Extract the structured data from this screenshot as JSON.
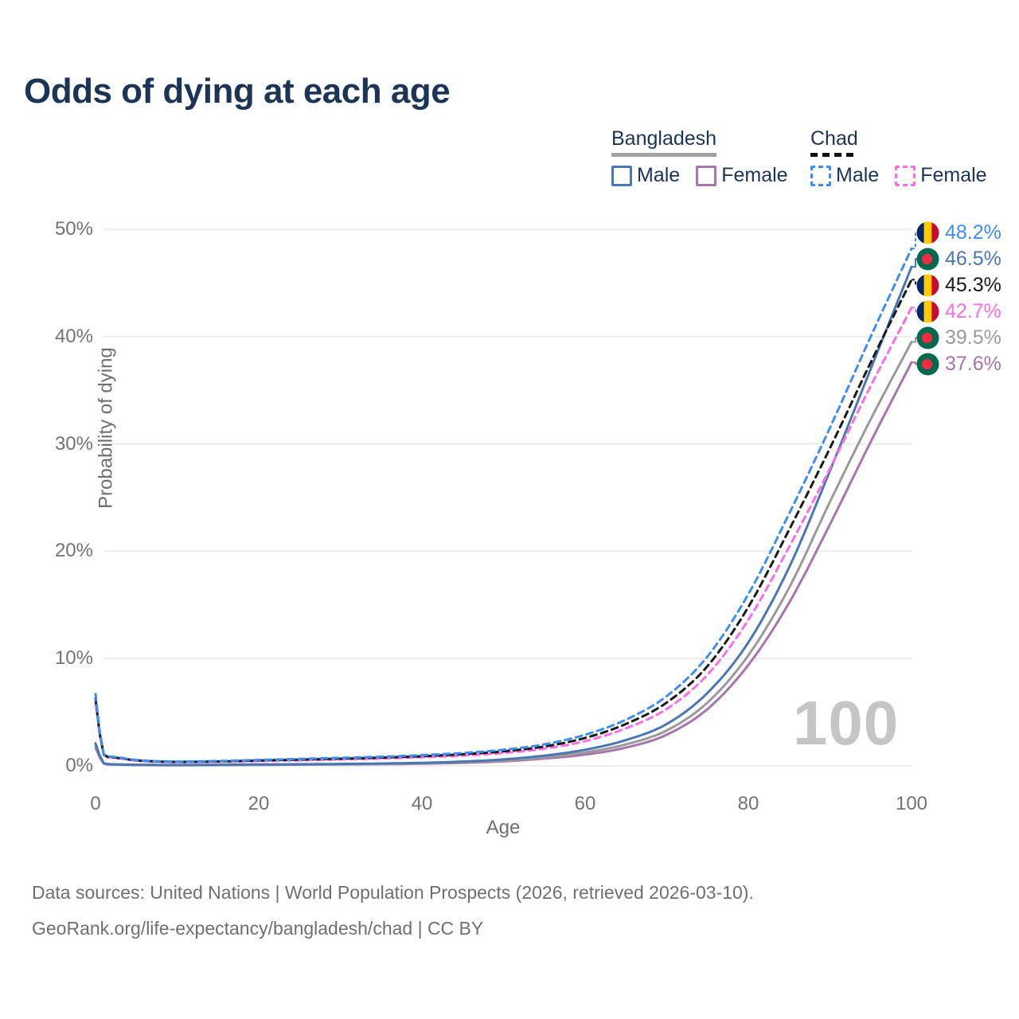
{
  "title": "Odds of dying at each age",
  "watermark": "100",
  "legend": {
    "groups": [
      {
        "label": "Bangladesh",
        "line_style": "solid",
        "line_color": "#a3a3a3",
        "items": [
          {
            "label": "Male",
            "color": "#4a77b4",
            "style": "solid"
          },
          {
            "label": "Female",
            "color": "#a973ae",
            "style": "solid"
          }
        ]
      },
      {
        "label": "Chad",
        "line_style": "dashed",
        "line_color": "#111111",
        "items": [
          {
            "label": "Male",
            "color": "#3d8ef0",
            "style": "dashed"
          },
          {
            "label": "Female",
            "color": "#f96ee8",
            "style": "dashed"
          }
        ]
      }
    ]
  },
  "y_axis": {
    "title": "Probability of dying",
    "tick_labels": [
      "0%",
      "10%",
      "20%",
      "30%",
      "40%",
      "50%"
    ]
  },
  "x_axis": {
    "title": "Age",
    "tick_labels": [
      "0",
      "20",
      "40",
      "60",
      "80",
      "100"
    ]
  },
  "footer": {
    "line1": "Data sources: United Nations | World Population Prospects (2026, retrieved 2026-03-10).",
    "line2": "GeoRank.org/life-expectancy/bangladesh/chad | CC BY"
  },
  "colors": {
    "title_text": "#1c3556",
    "axis_text": "#6f6f6f",
    "tick_text": "#737373",
    "grid": "#e7e7e7",
    "watermark": "#c5c5c5",
    "footer_text": "#6f6f6f",
    "chad_flag": [
      "#002664",
      "#fecb00",
      "#c60c30"
    ],
    "bangladesh_flag": [
      "#006a4e",
      "#f42a41"
    ]
  },
  "chart_data": {
    "type": "line",
    "title": "Odds of dying at each age",
    "xlabel": "Age",
    "ylabel": "Probability of dying",
    "xlim": [
      0,
      100
    ],
    "ylim_pct": [
      0,
      50
    ],
    "x_ticks": [
      0,
      20,
      40,
      60,
      80,
      100
    ],
    "y_ticks_pct": [
      0,
      10,
      20,
      30,
      40,
      50
    ],
    "grid": "horizontal-only",
    "legend_position": "top-right",
    "ages": [
      0,
      1,
      2,
      5,
      10,
      15,
      20,
      25,
      30,
      35,
      40,
      45,
      50,
      55,
      60,
      65,
      70,
      75,
      80,
      85,
      90,
      95,
      100
    ],
    "series": [
      {
        "name": "Bangladesh Female",
        "country": "Bangladesh",
        "sex": "Female",
        "flag": "bangladesh",
        "color": "#a973ae",
        "dash": "solid",
        "end_label": "37.6%",
        "values_pct": [
          1.7,
          0.21,
          0.12,
          0.08,
          0.06,
          0.07,
          0.09,
          0.11,
          0.13,
          0.16,
          0.2,
          0.28,
          0.42,
          0.68,
          1.05,
          1.7,
          2.9,
          5.3,
          9.4,
          15.2,
          22.5,
          30.2,
          37.6
        ]
      },
      {
        "name": "Bangladesh",
        "country": "Bangladesh",
        "sex": "Both",
        "flag": "bangladesh",
        "color": "#9a9a9a",
        "dash": "solid",
        "end_label": "39.5%",
        "values_pct": [
          1.9,
          0.23,
          0.14,
          0.09,
          0.07,
          0.08,
          0.1,
          0.12,
          0.15,
          0.18,
          0.23,
          0.33,
          0.5,
          0.8,
          1.25,
          2.0,
          3.3,
          5.9,
          10.3,
          16.6,
          24.6,
          32.3,
          39.5
        ]
      },
      {
        "name": "Bangladesh Male",
        "country": "Bangladesh",
        "sex": "Male",
        "flag": "bangladesh",
        "color": "#4a77b4",
        "dash": "solid",
        "end_label": "46.5%",
        "values_pct": [
          2.1,
          0.25,
          0.15,
          0.1,
          0.08,
          0.1,
          0.13,
          0.15,
          0.18,
          0.22,
          0.28,
          0.4,
          0.6,
          0.95,
          1.5,
          2.4,
          3.9,
          6.8,
          11.5,
          18.5,
          27.5,
          37.0,
          46.5
        ]
      },
      {
        "name": "Chad Female",
        "country": "Chad",
        "sex": "Female",
        "flag": "chad",
        "color": "#f96ee8",
        "dash": "dashed",
        "end_label": "42.7%",
        "values_pct": [
          5.9,
          1.0,
          0.76,
          0.48,
          0.34,
          0.37,
          0.44,
          0.51,
          0.59,
          0.68,
          0.8,
          0.95,
          1.2,
          1.6,
          2.3,
          3.5,
          5.3,
          8.5,
          13.6,
          20.4,
          27.7,
          35.4,
          42.7
        ]
      },
      {
        "name": "Chad",
        "country": "Chad",
        "sex": "Both",
        "flag": "chad",
        "color": "#1a1a1a",
        "dash": "dashed",
        "end_label": "45.3%",
        "values_pct": [
          6.3,
          1.05,
          0.8,
          0.52,
          0.37,
          0.41,
          0.5,
          0.58,
          0.67,
          0.77,
          0.9,
          1.08,
          1.35,
          1.8,
          2.6,
          3.9,
          5.9,
          9.3,
          14.8,
          22.0,
          29.6,
          37.6,
          45.3
        ]
      },
      {
        "name": "Chad Male",
        "country": "Chad",
        "sex": "Male",
        "flag": "chad",
        "color": "#3d8ef0",
        "dash": "dashed",
        "end_label": "48.2%",
        "values_pct": [
          6.7,
          1.1,
          0.85,
          0.55,
          0.4,
          0.45,
          0.55,
          0.65,
          0.75,
          0.85,
          1.0,
          1.2,
          1.5,
          2.0,
          2.9,
          4.3,
          6.5,
          10.2,
          16.0,
          23.5,
          31.5,
          40.0,
          48.2
        ]
      }
    ]
  }
}
